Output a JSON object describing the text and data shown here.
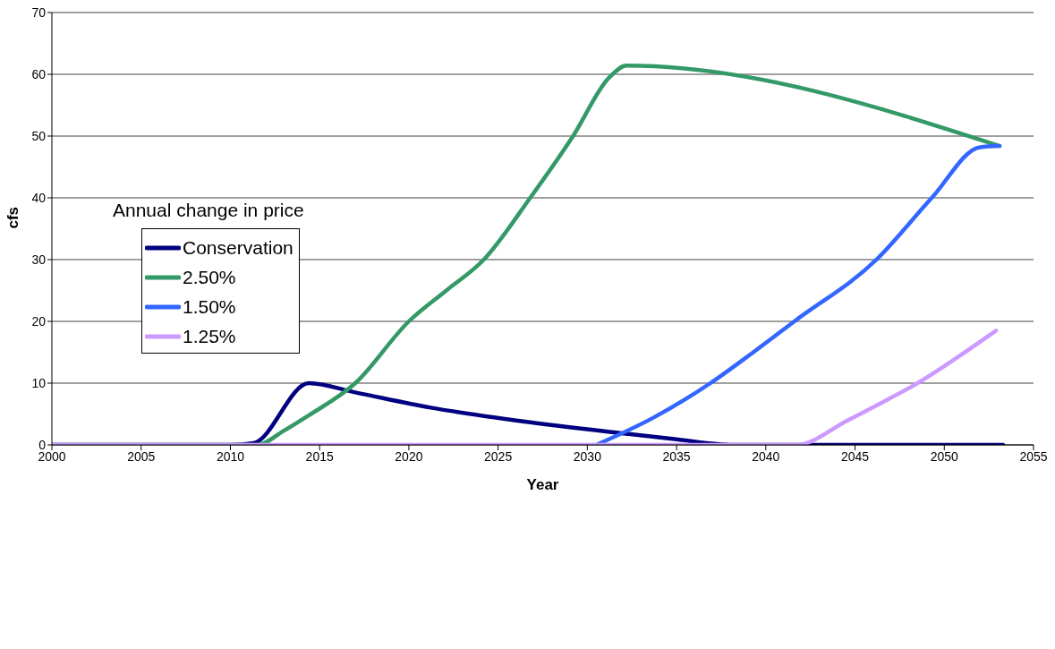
{
  "chart_data": {
    "type": "line",
    "xlabel": "Year",
    "ylabel": "cfs",
    "legend_title": "Annual change in price",
    "xlim": [
      2000,
      2055
    ],
    "xticks": [
      2000,
      2005,
      2010,
      2015,
      2020,
      2025,
      2030,
      2035,
      2040,
      2045,
      2050,
      2055
    ],
    "ylim": [
      0,
      70
    ],
    "yticks": [
      0,
      10,
      20,
      30,
      40,
      50,
      60,
      70
    ],
    "grid": "y",
    "legend": "left",
    "marker": "none",
    "line_style": "solid",
    "series": [
      {
        "name": "Conservation",
        "color": "#000080",
        "x": [
          2000,
          2010,
          2011.3,
          2014.4,
          2017,
          2021.3,
          2026.4,
          2031.9,
          2035,
          2038.2,
          2053.3
        ],
        "values": [
          0,
          0,
          0.3,
          10,
          8.5,
          6,
          3.8,
          1.9,
          0.9,
          0,
          0
        ]
      },
      {
        "name": "2.50%",
        "color": "#339966",
        "x": [
          2000,
          2011.5,
          2013,
          2014.4,
          2017,
          2020,
          2022.1,
          2024.2,
          2026.8,
          2029.2,
          2031.2,
          2032.2,
          2053.1
        ],
        "values": [
          0,
          0,
          2.3,
          4.8,
          10,
          20,
          25,
          30,
          40,
          50,
          59.4,
          61.4,
          48.4
        ]
      },
      {
        "name": "1.50%",
        "color": "#3366ff",
        "x": [
          2030.5,
          2033.7,
          2036.9,
          2039.3,
          2041.6,
          2046.2,
          2049.3,
          2052,
          2053.1
        ],
        "values": [
          0,
          4.4,
          10,
          15,
          20,
          30,
          40,
          48.2,
          48.4
        ]
      },
      {
        "name": "1.25%",
        "color": "#cc99ff",
        "x": [
          2000,
          2041.7,
          2044.6,
          2046.6,
          2048.5,
          2050.7,
          2052.9
        ],
        "values": [
          0,
          0,
          4,
          7,
          10,
          14.1,
          18.5
        ]
      }
    ]
  }
}
